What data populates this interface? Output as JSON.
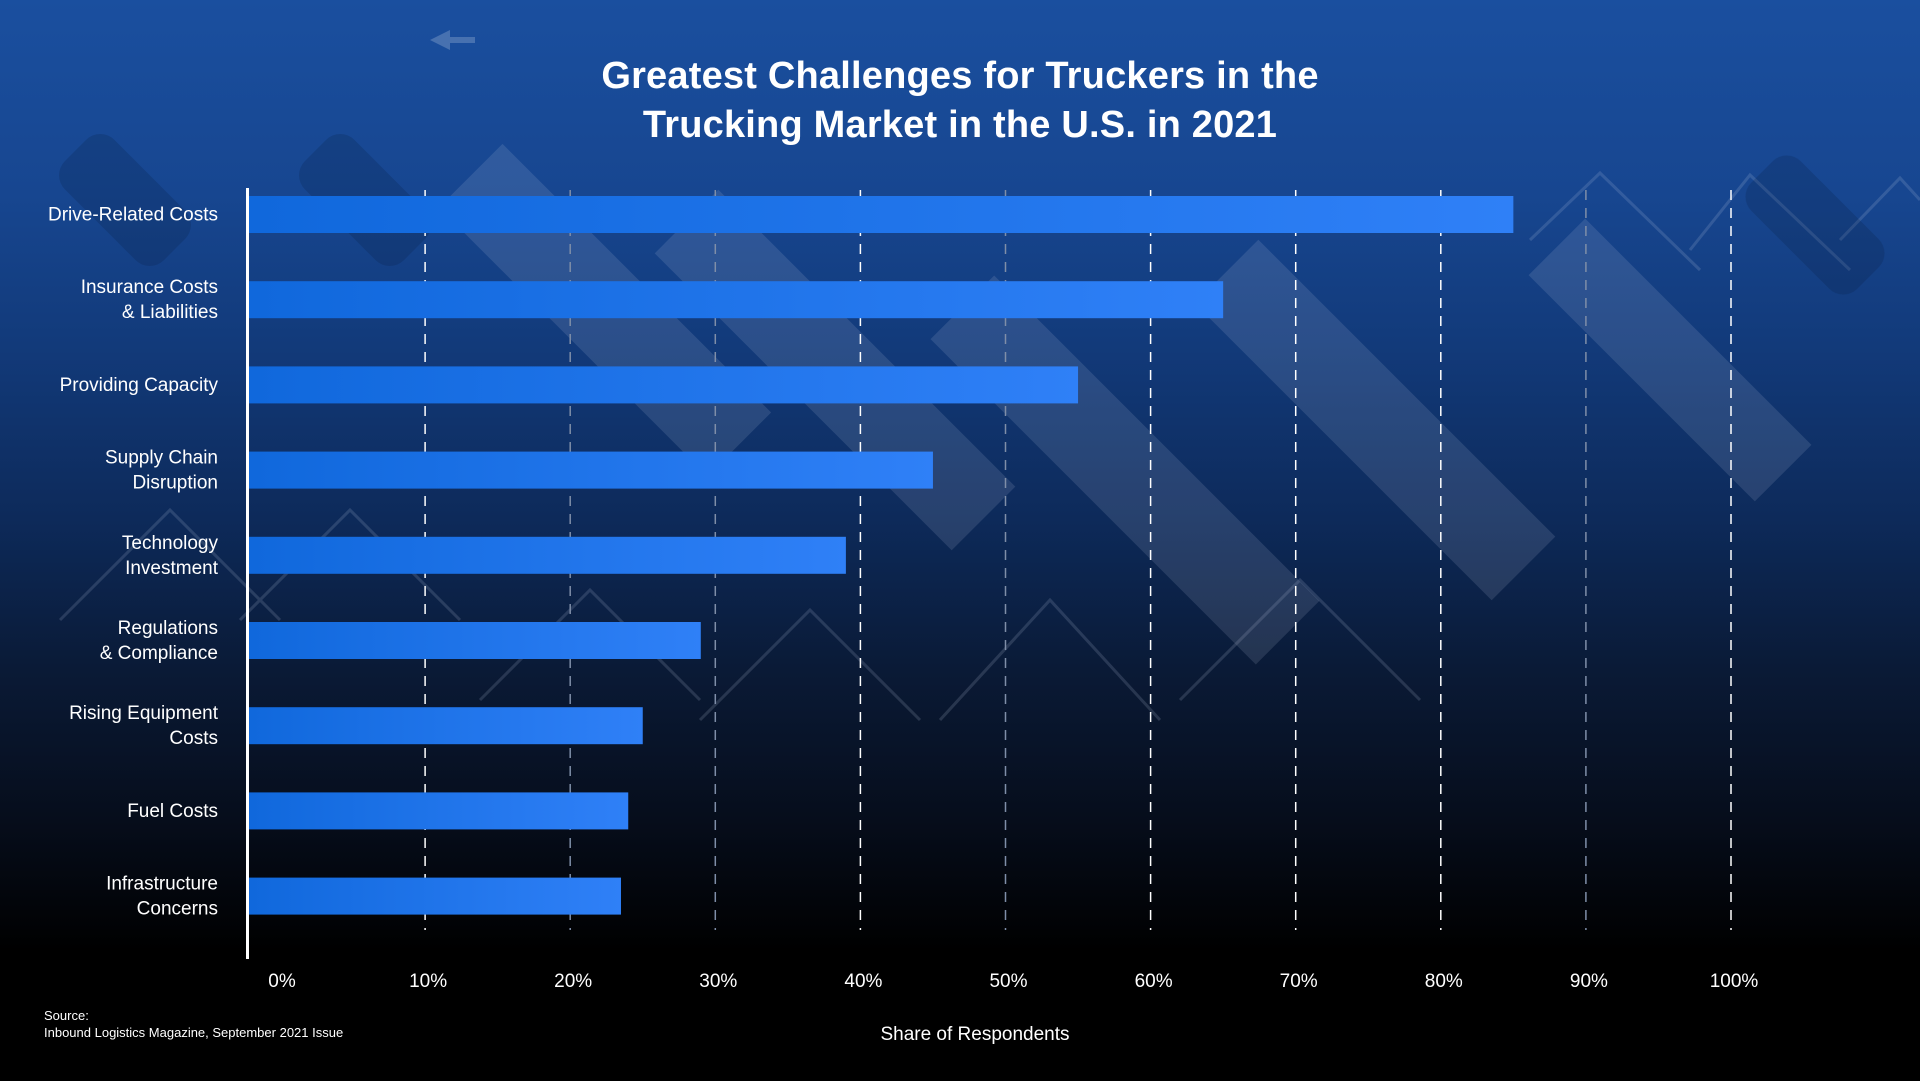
{
  "chart_data": {
    "type": "bar",
    "orientation": "horizontal",
    "title": "Greatest Challenges for Truckers in the Trucking Market in the U.S. in 2021",
    "title_lines": [
      "Greatest Challenges for Truckers in the",
      "Trucking Market in the U.S. in 2021"
    ],
    "categories": [
      "Drive-Related Costs",
      "Insurance Costs & Liabilities",
      "Providing Capacity",
      "Supply Chain Disruption",
      "Technology Investment",
      "Regulations & Compliance",
      "Rising Equipment Costs",
      "Fuel Costs",
      "Infrastructure Concerns"
    ],
    "category_label_lines": [
      [
        "Drive-Related Costs"
      ],
      [
        "Insurance Costs",
        "& Liabilities"
      ],
      [
        "Providing Capacity"
      ],
      [
        "Supply Chain",
        "Disruption"
      ],
      [
        "Technology",
        "Investment"
      ],
      [
        "Regulations",
        "& Compliance"
      ],
      [
        "Rising Equipment",
        "Costs"
      ],
      [
        "Fuel Costs"
      ],
      [
        "Infrastructure",
        "Concerns"
      ]
    ],
    "values": [
      85,
      65,
      55,
      45,
      39,
      29,
      25,
      24,
      23.5
    ],
    "unit": "%",
    "xlabel": "Share of Respondents",
    "ylabel": "",
    "xlim": [
      0,
      100
    ],
    "x_ticks": [
      0,
      10,
      20,
      30,
      40,
      50,
      60,
      70,
      80,
      90,
      100
    ],
    "x_tick_labels": [
      "0%",
      "10%",
      "20%",
      "30%",
      "40%",
      "50%",
      "60%",
      "70%",
      "80%",
      "90%",
      "100%"
    ],
    "grid": "vertical dashed",
    "legend": "none",
    "bar_color_start": "#1068dc",
    "bar_color_end": "#2f80f7"
  },
  "source": {
    "label": "Source:",
    "text": "Inbound Logistics Magazine, September 2021 Issue"
  }
}
